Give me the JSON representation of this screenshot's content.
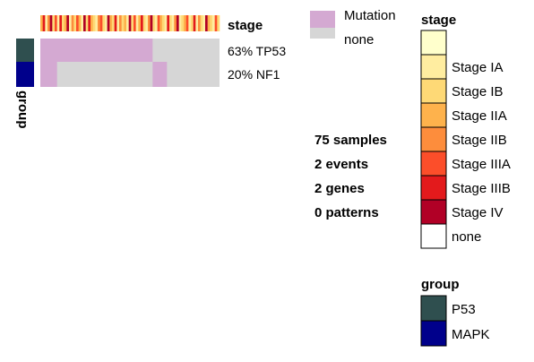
{
  "chart_data": {
    "type": "heatmap",
    "stage_track_label": "stage",
    "samples_count": 75,
    "stage_sequence": [
      "Stage IIA",
      "Stage IIIB",
      "Stage IA",
      "Stage IIB",
      "Stage IV",
      "Stage IB",
      "Stage IIIA",
      "Stage IA",
      "Stage IIIB",
      "Stage IB",
      "Stage IIA",
      "Stage IV",
      "Stage IA",
      "Stage IIB",
      "Stage IB",
      "Stage IIIA",
      "Stage IIA",
      "Stage IA",
      "Stage IV",
      "Stage IB",
      "Stage IIIB",
      "Stage IIA",
      "Stage IB",
      "Stage IA",
      "Stage IIB",
      "Stage IIIA",
      "Stage IB",
      "Stage IA",
      "Stage IV",
      "Stage IIA",
      "Stage IB",
      "Stage IIIB",
      "Stage IA",
      "Stage IIB",
      "Stage IB",
      "Stage IIA",
      "Stage IA",
      "Stage IV",
      "Stage IB",
      "Stage IIIA",
      "Stage IA",
      "Stage IIA",
      "Stage IIIB",
      "Stage IB",
      "Stage IA",
      "Stage IIB",
      "Stage IV",
      "Stage IB",
      "Stage IA",
      "Stage IIIA",
      "Stage IIA",
      "Stage IB",
      "Stage IA",
      "Stage IIIB",
      "Stage IB",
      "Stage IA",
      "Stage IIB",
      "Stage IV",
      "Stage IA",
      "Stage IB",
      "Stage IIA",
      "Stage IIIA",
      "Stage IA",
      "Stage IB",
      "Stage IIIB",
      "Stage IA",
      "Stage IIB",
      "Stage IB",
      "Stage IA",
      "Stage IV",
      "Stage IIA",
      "Stage IB",
      "Stage IA",
      "Stage IIIA",
      "Stage IB"
    ],
    "genes": [
      {
        "label": "63% TP53",
        "percent": 63,
        "group": "P53",
        "mutated_samples": [
          [
            0,
            47
          ]
        ]
      },
      {
        "label": "20% NF1",
        "percent": 20,
        "group": "MAPK",
        "mutated_samples": [
          [
            0,
            7
          ],
          [
            47,
            53
          ]
        ]
      }
    ],
    "row_group_label": "group",
    "mutation_legend": [
      {
        "label": "Mutation",
        "color": "#d4a9d2"
      },
      {
        "label": "none",
        "color": "#d6d6d6"
      }
    ],
    "stats": [
      "75 samples",
      "2 events",
      "2 genes",
      "0 patterns"
    ],
    "stage_legend": {
      "title": "stage",
      "items": [
        {
          "label": "",
          "color": "#ffffcc"
        },
        {
          "label": "Stage IA",
          "color": "#ffeda0"
        },
        {
          "label": "Stage IB",
          "color": "#fed976"
        },
        {
          "label": "Stage IIA",
          "color": "#feb24c"
        },
        {
          "label": "Stage IIB",
          "color": "#fd8d3c"
        },
        {
          "label": "Stage IIIA",
          "color": "#fc4e2a"
        },
        {
          "label": "Stage IIIB",
          "color": "#e31a1c"
        },
        {
          "label": "Stage IV",
          "color": "#b10026"
        },
        {
          "label": "none",
          "color": "#ffffff"
        }
      ]
    },
    "group_legend": {
      "title": "group",
      "items": [
        {
          "label": "P53",
          "color": "#2f4f4f"
        },
        {
          "label": "MAPK",
          "color": "#00008b"
        }
      ]
    }
  }
}
